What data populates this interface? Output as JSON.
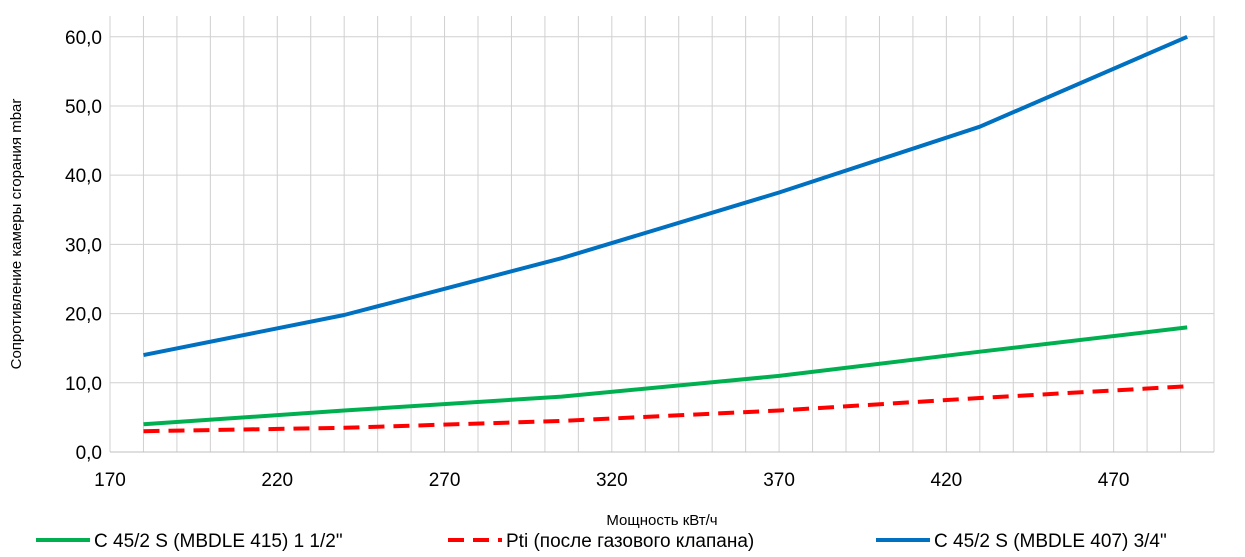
{
  "chart_data": {
    "type": "line",
    "xlabel": "Мощность кВт/ч",
    "ylabel": "Сопротивление камеры сгорания mbar",
    "xlim": [
      170,
      500
    ],
    "ylim": [
      0,
      65
    ],
    "x_ticks": [
      170,
      220,
      270,
      320,
      370,
      420,
      470
    ],
    "x_tick_labels": [
      "170",
      "220",
      "270",
      "320",
      "370",
      "420",
      "470"
    ],
    "y_ticks": [
      0,
      10,
      20,
      30,
      40,
      50,
      60
    ],
    "y_tick_labels": [
      "0,0",
      "10,0",
      "20,0",
      "30,0",
      "40,0",
      "50,0",
      "60,0"
    ],
    "grid": true,
    "legend_position": "bottom",
    "series": [
      {
        "name": "C 45/2 S (MBDLE 415) 1 1/2\"",
        "color": "#00b050",
        "dash": "solid",
        "x": [
          180,
          240,
          305,
          370,
          430,
          492
        ],
        "y": [
          4.0,
          6.0,
          8.0,
          11.0,
          14.5,
          18.0
        ]
      },
      {
        "name": "Pti (после газового клапана)",
        "color": "#ff0000",
        "dash": "dashed",
        "x": [
          180,
          240,
          305,
          370,
          430,
          492
        ],
        "y": [
          3.0,
          3.5,
          4.5,
          6.0,
          7.8,
          9.5
        ]
      },
      {
        "name": "C 45/2 S (MBDLE 407) 3/4\"",
        "color": "#0070c0",
        "dash": "solid",
        "x": [
          180,
          240,
          305,
          370,
          430,
          492
        ],
        "y": [
          14.0,
          19.8,
          28.0,
          37.5,
          47.0,
          60.0
        ]
      }
    ]
  }
}
